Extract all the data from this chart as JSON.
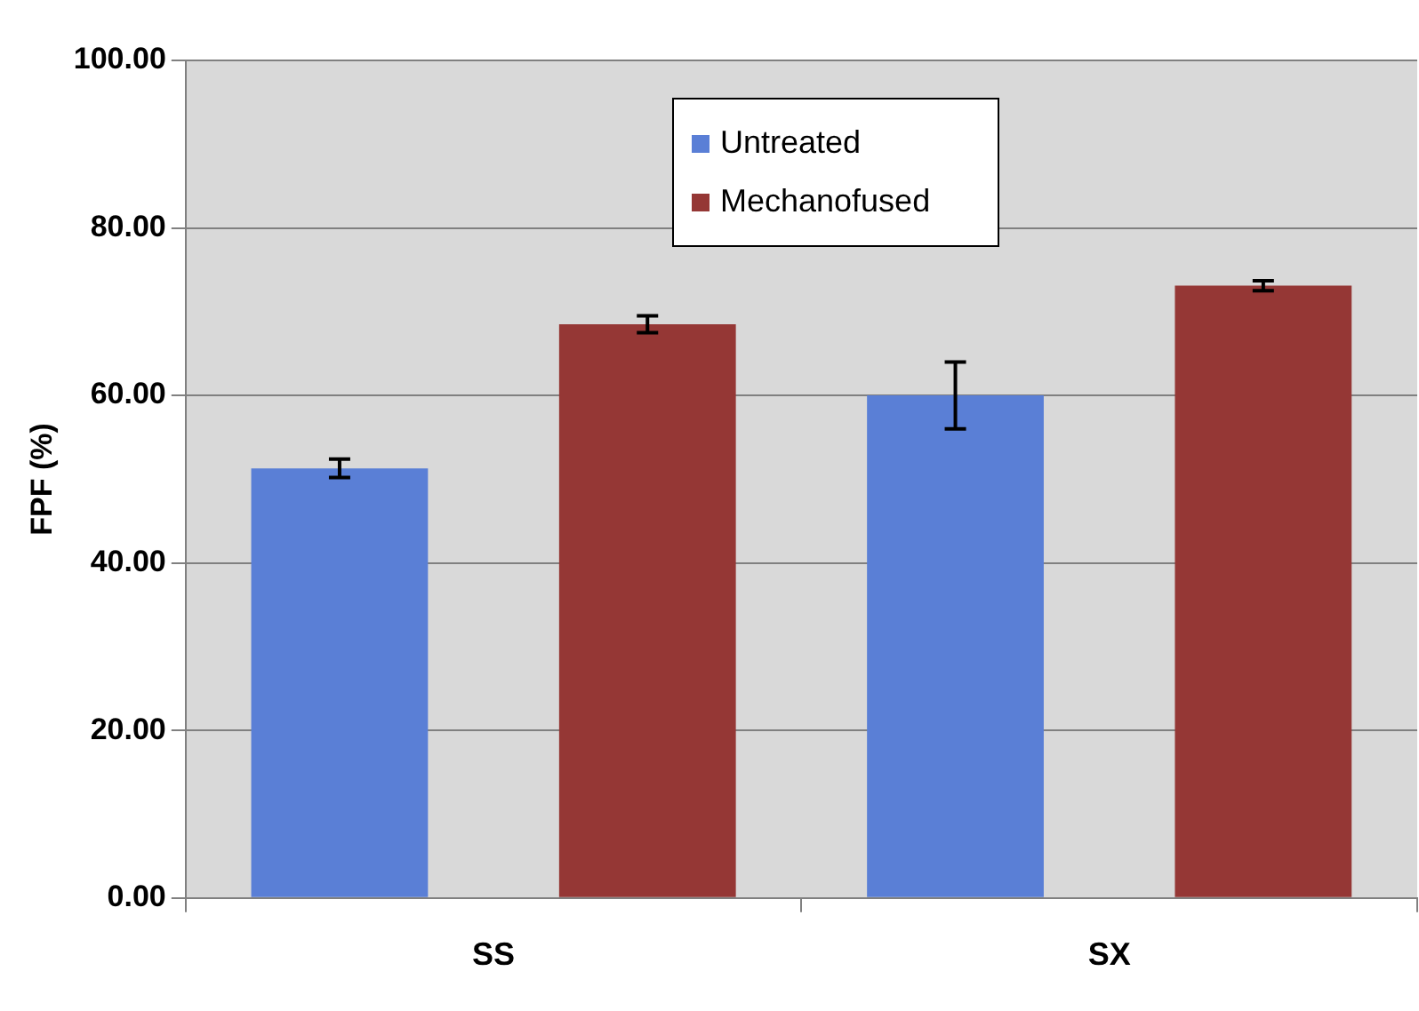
{
  "chart_data": {
    "type": "bar",
    "ylabel": "FPF (%)",
    "categories": [
      "SS",
      "SX"
    ],
    "series": [
      {
        "name": "Untreated",
        "color": "#5a7fd6",
        "values": [
          51.3,
          60.0
        ],
        "errors": [
          1.1,
          4.0
        ]
      },
      {
        "name": "Mechanofused",
        "color": "#953735",
        "values": [
          68.5,
          73.1
        ],
        "errors": [
          1.0,
          0.6
        ]
      }
    ],
    "ylim": [
      0,
      100
    ],
    "yticks": [
      {
        "value": 0,
        "label": "0.00"
      },
      {
        "value": 20,
        "label": "20.00"
      },
      {
        "value": 40,
        "label": "40.00"
      },
      {
        "value": 60,
        "label": "60.00"
      },
      {
        "value": 80,
        "label": "80.00"
      },
      {
        "value": 100,
        "label": "100.00"
      }
    ],
    "grid": "y",
    "legend": "top"
  }
}
